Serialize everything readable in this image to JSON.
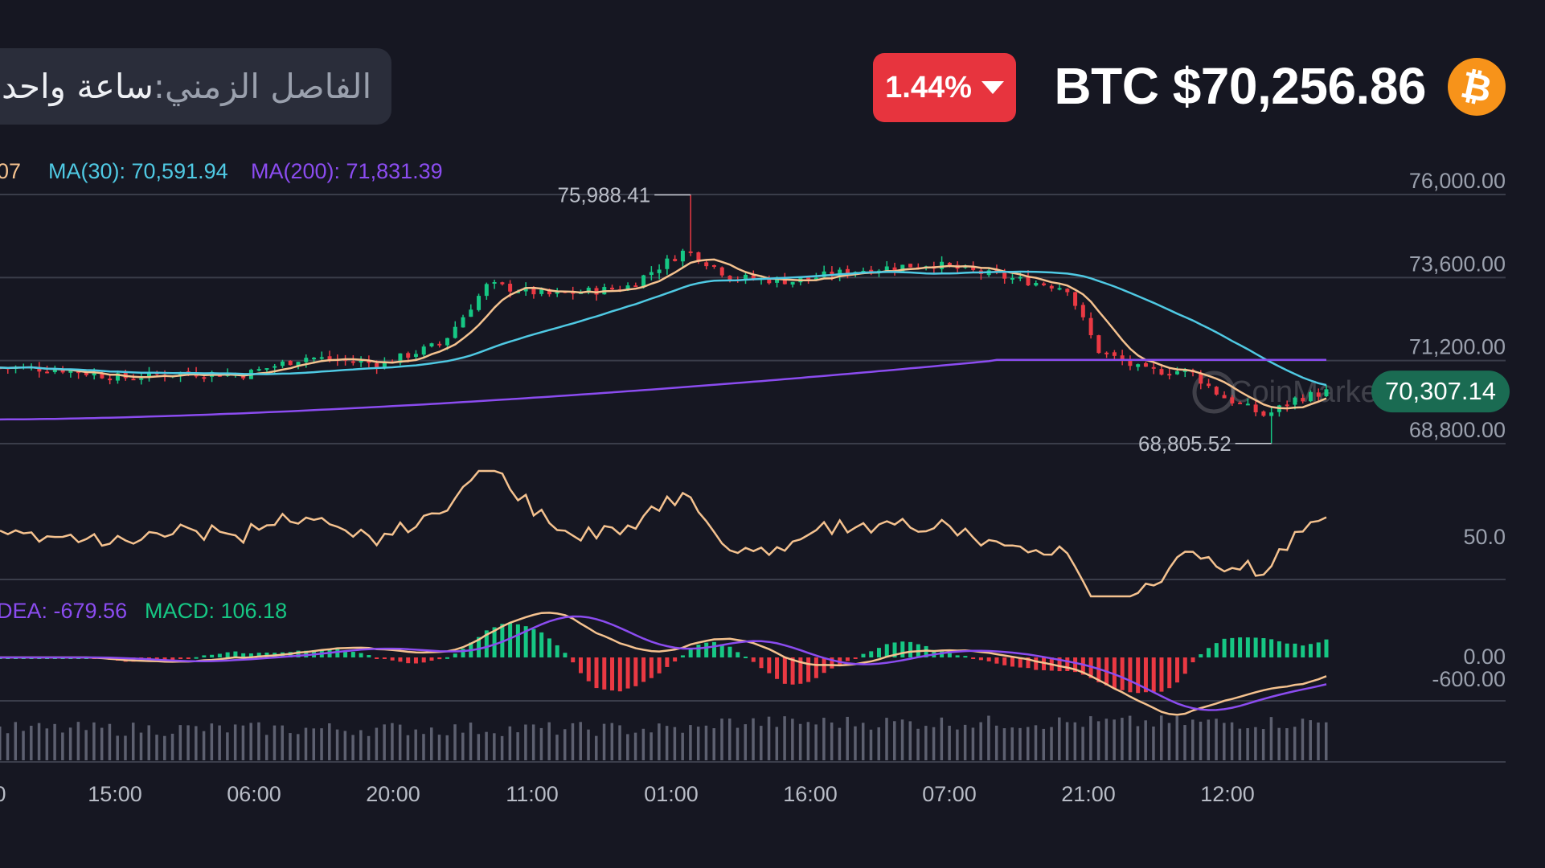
{
  "header": {
    "interval_label": "الفاصل الزمني:",
    "interval_value": "ساعة واحدة",
    "change_percent": "1.44%",
    "price_title": "BTC $70,256.86",
    "coin_symbol": "₿"
  },
  "colors": {
    "background": "#161722",
    "up": "#16c784",
    "down": "#ea3943",
    "ma_fast": "#f5c28f",
    "ma30": "#4fc9e3",
    "ma200": "#8b4cf0",
    "dea": "#8b4cf0",
    "dif": "#f5c28f",
    "macd": "#16c784",
    "rsi": "#f5c28f",
    "volume": "#5d6070",
    "grid": "#3a3d4a",
    "badge": "#e7343e",
    "last_price_bg": "#1a6b52",
    "btc": "#f7931a"
  },
  "chart_data": {
    "type": "candlestick",
    "symbol": "BTC",
    "timeframe": "ساعة واحدة",
    "legend": {
      "ma_fast_fragment": "07",
      "ma30": "MA(30): 70,591.94",
      "ma200": "MA(200): 71,831.39",
      "dea": "DEA: -679.56",
      "macd": "MACD: 106.18"
    },
    "price_axis": {
      "ticks": [
        "76,000.00",
        "73,600.00",
        "71,200.00",
        "68,800.00"
      ],
      "range": [
        67600,
        76800
      ]
    },
    "last_price": "70,307.14",
    "high_marker": {
      "label": "75,988.41",
      "value": 75988.41
    },
    "low_marker": {
      "label": "68,805.52",
      "value": 68805.52
    },
    "rsi_axis": {
      "ticks": [
        "50.0"
      ]
    },
    "macd_axis": {
      "ticks": [
        "0.00",
        "-600.00"
      ]
    },
    "time_axis": [
      "0",
      "15:00",
      "06:00",
      "20:00",
      "11:00",
      "01:00",
      "16:00",
      "07:00",
      "21:00",
      "12:00"
    ],
    "close_series_anchors": [
      [
        0,
        71000
      ],
      [
        0.04,
        70950
      ],
      [
        0.08,
        70700
      ],
      [
        0.12,
        70850
      ],
      [
        0.16,
        70800
      ],
      [
        0.2,
        71300
      ],
      [
        0.25,
        71100
      ],
      [
        0.29,
        71700
      ],
      [
        0.32,
        73400
      ],
      [
        0.36,
        73100
      ],
      [
        0.41,
        73300
      ],
      [
        0.45,
        74400
      ],
      [
        0.48,
        73600
      ],
      [
        0.52,
        73500
      ],
      [
        0.56,
        73800
      ],
      [
        0.61,
        74000
      ],
      [
        0.66,
        73600
      ],
      [
        0.7,
        73300
      ],
      [
        0.72,
        71500
      ],
      [
        0.75,
        70900
      ],
      [
        0.78,
        70900
      ],
      [
        0.8,
        70200
      ],
      [
        0.83,
        69600
      ],
      [
        0.85,
        70100
      ],
      [
        0.87,
        70300
      ]
    ],
    "watermark": "CoinMarketCap"
  }
}
